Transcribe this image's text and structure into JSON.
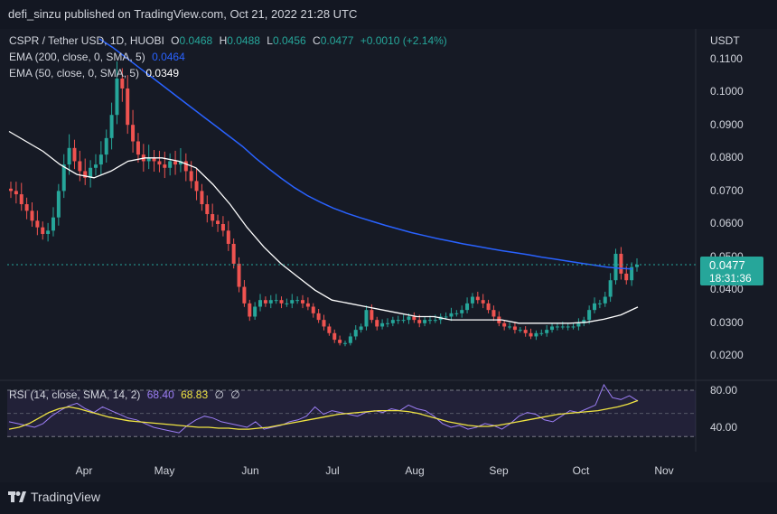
{
  "header": {
    "publisher_text": "defi_sinzu published on TradingView.com, Oct 21, 2022 21:28 UTC"
  },
  "legend": {
    "symbol": "CSPR / Tether USD, 1D, HUOBI",
    "o_label": "O",
    "o_value": "0.0468",
    "h_label": "H",
    "h_value": "0.0488",
    "l_label": "L",
    "l_value": "0.0456",
    "c_label": "C",
    "c_value": "0.0477",
    "change": "+0.0010 (+2.14%)",
    "ema200_label": "EMA (200, close, 0, SMA, 5)",
    "ema200_value": "0.0464",
    "ema50_label": "EMA (50, close, 0, SMA, 5)",
    "ema50_value": "0.0349"
  },
  "rsi_legend": {
    "label": "RSI (14, close, SMA, 14, 2)",
    "rsi_value": "68.40",
    "sma_value": "68.83",
    "extra1": "∅",
    "extra2": "∅"
  },
  "price_axis": {
    "currency": "USDT",
    "ticks": [
      "0.1100",
      "0.1000",
      "0.0900",
      "0.0800",
      "0.0700",
      "0.0600",
      "0.0500",
      "0.0400",
      "0.0300",
      "0.0200"
    ]
  },
  "rsi_axis": {
    "ticks": [
      "80.00",
      "40.00"
    ]
  },
  "last_price": {
    "price": "0.0477",
    "countdown": "18:31:36"
  },
  "footer": {
    "brand": "TradingView"
  },
  "colors": {
    "up": "#26a69a",
    "down": "#ef5350",
    "ema200": "#2962ff",
    "ema50": "#ffffff",
    "rsi": "#9c7ef5",
    "rsi_sma": "#f0e442",
    "background": "#161a25"
  },
  "chart_data": {
    "type": "candlestick",
    "xlabels": [
      "Apr",
      "May",
      "Jun",
      "Jul",
      "Aug",
      "Sep",
      "Oct",
      "Nov"
    ],
    "price_ylim": [
      0.018,
      0.114
    ],
    "rsi_ylim": [
      20,
      90
    ],
    "close_approx": [
      0.07,
      0.069,
      0.066,
      0.064,
      0.061,
      0.059,
      0.057,
      0.058,
      0.062,
      0.07,
      0.078,
      0.083,
      0.079,
      0.076,
      0.074,
      0.077,
      0.078,
      0.081,
      0.086,
      0.093,
      0.104,
      0.101,
      0.09,
      0.085,
      0.081,
      0.079,
      0.08,
      0.079,
      0.078,
      0.077,
      0.079,
      0.078,
      0.079,
      0.076,
      0.073,
      0.07,
      0.066,
      0.063,
      0.061,
      0.06,
      0.058,
      0.054,
      0.048,
      0.041,
      0.036,
      0.032,
      0.035,
      0.037,
      0.036,
      0.037,
      0.037,
      0.036,
      0.036,
      0.037,
      0.037,
      0.036,
      0.035,
      0.033,
      0.031,
      0.029,
      0.027,
      0.025,
      0.024,
      0.024,
      0.026,
      0.028,
      0.029,
      0.034,
      0.031,
      0.029,
      0.03,
      0.03,
      0.031,
      0.031,
      0.031,
      0.032,
      0.031,
      0.03,
      0.031,
      0.031,
      0.031,
      0.032,
      0.032,
      0.033,
      0.033,
      0.034,
      0.036,
      0.038,
      0.037,
      0.036,
      0.034,
      0.032,
      0.03,
      0.029,
      0.029,
      0.028,
      0.028,
      0.027,
      0.026,
      0.027,
      0.027,
      0.028,
      0.029,
      0.029,
      0.029,
      0.029,
      0.029,
      0.03,
      0.031,
      0.034,
      0.036,
      0.036,
      0.038,
      0.043,
      0.051,
      0.045,
      0.043,
      0.047,
      0.0477
    ],
    "ema200_approx": [
      0.116,
      0.1135,
      0.1105,
      0.1075,
      0.1045,
      0.1015,
      0.0985,
      0.0955,
      0.0925,
      0.0895,
      0.0865,
      0.0835,
      0.08,
      0.0768,
      0.0738,
      0.071,
      0.0686,
      0.0666,
      0.0648,
      0.0633,
      0.062,
      0.0608,
      0.0596,
      0.0585,
      0.0574,
      0.0565,
      0.0556,
      0.0548,
      0.054,
      0.0533,
      0.0526,
      0.0519,
      0.0513,
      0.0507,
      0.05,
      0.0494,
      0.0488,
      0.0482,
      0.0476,
      0.047,
      0.0466,
      0.0464
    ],
    "ema50_approx": [
      0.088,
      0.085,
      0.082,
      0.078,
      0.075,
      0.074,
      0.076,
      0.079,
      0.08,
      0.08,
      0.079,
      0.077,
      0.072,
      0.066,
      0.059,
      0.053,
      0.048,
      0.044,
      0.04,
      0.037,
      0.036,
      0.035,
      0.034,
      0.033,
      0.032,
      0.032,
      0.031,
      0.031,
      0.031,
      0.031,
      0.03,
      0.03,
      0.03,
      0.03,
      0.0303,
      0.0312,
      0.0325,
      0.0349
    ],
    "rsi_approx": [
      46,
      44,
      42,
      40,
      44,
      52,
      58,
      63,
      66,
      60,
      56,
      62,
      58,
      54,
      50,
      48,
      44,
      40,
      38,
      36,
      34,
      42,
      48,
      52,
      50,
      46,
      44,
      42,
      40,
      46,
      38,
      40,
      42,
      46,
      48,
      52,
      62,
      54,
      58,
      56,
      54,
      52,
      56,
      58,
      56,
      60,
      58,
      64,
      60,
      58,
      52,
      44,
      40,
      42,
      38,
      40,
      44,
      42,
      38,
      44,
      52,
      56,
      54,
      48,
      46,
      52,
      58,
      56,
      60,
      64,
      86,
      72,
      70,
      74,
      68.4
    ],
    "rsi_sma_approx": [
      38,
      40,
      44,
      50,
      56,
      60,
      62,
      60,
      57,
      54,
      51,
      49,
      47,
      46,
      45,
      44,
      43,
      42,
      41,
      40,
      40,
      39,
      39,
      38,
      38,
      39,
      40,
      42,
      44,
      46,
      48,
      50,
      52,
      54,
      55,
      56,
      57,
      58,
      58,
      58,
      57,
      55,
      52,
      49,
      46,
      44,
      42,
      41,
      41,
      42,
      44,
      46,
      48,
      50,
      52,
      54,
      55,
      56,
      57,
      58,
      60,
      62,
      65,
      68.83
    ]
  }
}
